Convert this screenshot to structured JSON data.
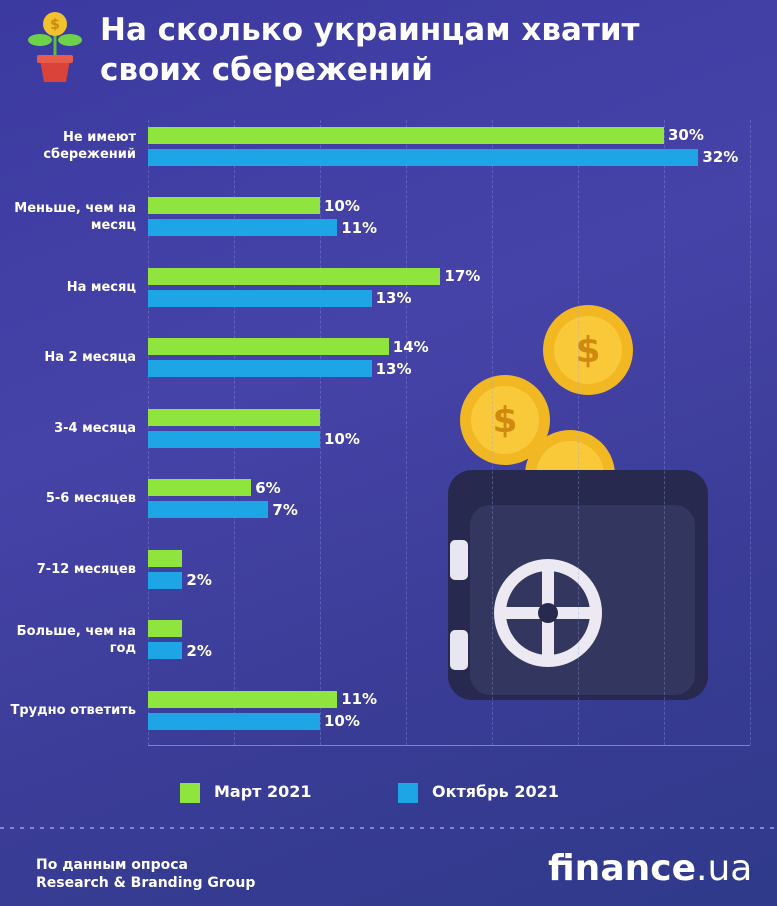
{
  "chart_data": {
    "type": "bar",
    "orientation": "horizontal",
    "title": "На сколько украинцам хватит своих сбережений",
    "categories": [
      "Не имеют сбережений",
      "Меньше, чем на месяц",
      "На месяц",
      "На 2 месяца",
      "3-4 месяца",
      "5-6 месяцев",
      "7-12 месяцев",
      "Больше, чем на год",
      "Трудно ответить"
    ],
    "series": [
      {
        "name": "Март 2021",
        "color": "#8fe43e",
        "values": [
          30,
          10,
          17,
          14,
          10,
          6,
          2,
          2,
          11
        ],
        "value_labels": [
          "30%",
          "10%",
          "17%",
          "14%",
          null,
          "6%",
          null,
          null,
          "11%"
        ]
      },
      {
        "name": "Октябрь 2021",
        "color": "#1ea5e6",
        "values": [
          32,
          11,
          13,
          13,
          10,
          7,
          2,
          2,
          10
        ],
        "value_labels": [
          "32%",
          "11%",
          "13%",
          "13%",
          "10%",
          "7%",
          "2%",
          "2%",
          "10%"
        ]
      }
    ],
    "xlim": [
      0,
      35
    ],
    "xticks": [
      0,
      5,
      10,
      15,
      20,
      25,
      30,
      35
    ],
    "grid": true,
    "source": [
      "По данным опроса",
      "Research & Branding Group"
    ],
    "logo": [
      "finance",
      ".ua"
    ]
  }
}
